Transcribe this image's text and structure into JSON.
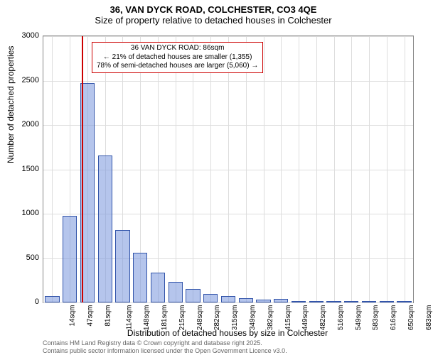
{
  "title_main": "36, VAN DYCK ROAD, COLCHESTER, CO3 4QE",
  "title_sub": "Size of property relative to detached houses in Colchester",
  "chart": {
    "type": "histogram",
    "ylabel": "Number of detached properties",
    "xlabel": "Distribution of detached houses by size in Colchester",
    "ylim": [
      0,
      3000
    ],
    "ytick_step": 500,
    "yticks": [
      0,
      500,
      1000,
      1500,
      2000,
      2500,
      3000
    ],
    "xticks": [
      "14sqm",
      "47sqm",
      "81sqm",
      "114sqm",
      "148sqm",
      "181sqm",
      "215sqm",
      "248sqm",
      "282sqm",
      "315sqm",
      "349sqm",
      "382sqm",
      "415sqm",
      "449sqm",
      "482sqm",
      "516sqm",
      "549sqm",
      "583sqm",
      "616sqm",
      "650sqm",
      "683sqm"
    ],
    "bar_values": [
      70,
      980,
      2470,
      1660,
      820,
      560,
      340,
      230,
      150,
      100,
      70,
      50,
      30,
      40,
      20,
      15,
      10,
      10,
      5,
      5,
      5
    ],
    "bar_fill": "rgba(120,150,220,0.55)",
    "bar_stroke": "#3355aa",
    "grid_color": "#dddddd",
    "axis_color": "#888888",
    "background_color": "#ffffff",
    "marker": {
      "x_category": "81sqm",
      "color": "#cc0000",
      "fraction_within_bin": 0.18
    },
    "annotation": {
      "line1": "36 VAN DYCK ROAD: 86sqm",
      "line2": "← 21% of detached houses are smaller (1,355)",
      "line3": "78% of semi-detached houses are larger (5,060) →",
      "border_color": "#cc0000",
      "fontsize": 10
    },
    "title_fontsize": 13,
    "label_fontsize": 12,
    "tick_fontsize": 10
  },
  "footer": {
    "line1": "Contains HM Land Registry data © Crown copyright and database right 2025.",
    "line2": "Contains public sector information licensed under the Open Government Licence v3.0."
  }
}
